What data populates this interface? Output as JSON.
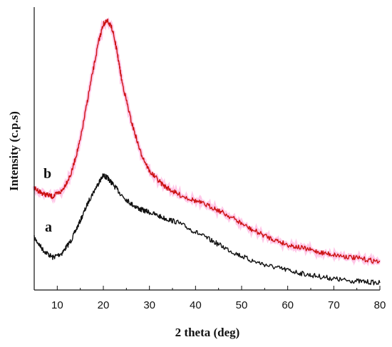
{
  "chart_data": {
    "type": "line",
    "xlabel": "2 theta (deg)",
    "ylabel": "Intensity (c.p.s)",
    "xlim": [
      5,
      80
    ],
    "ylim": [
      0,
      1
    ],
    "x_ticks": [
      10,
      20,
      30,
      40,
      50,
      60,
      70,
      80
    ],
    "y_tick_labels": false,
    "grid": false,
    "legend": "none",
    "series": [
      {
        "name": "a",
        "color": "#111111",
        "x": [
          5,
          7,
          9,
          11,
          13,
          15,
          17,
          19,
          20,
          21,
          22,
          24,
          26,
          28,
          30,
          33,
          36,
          40,
          44,
          48,
          52,
          56,
          60,
          64,
          68,
          72,
          76,
          80
        ],
        "y": [
          0.185,
          0.14,
          0.115,
          0.13,
          0.175,
          0.245,
          0.32,
          0.38,
          0.405,
          0.395,
          0.375,
          0.335,
          0.305,
          0.285,
          0.275,
          0.255,
          0.24,
          0.205,
          0.17,
          0.135,
          0.105,
          0.085,
          0.07,
          0.055,
          0.045,
          0.035,
          0.03,
          0.025
        ]
      },
      {
        "name": "b",
        "color": "#cc1111",
        "x": [
          5,
          7,
          9,
          11,
          13,
          15,
          17,
          19,
          20,
          21,
          22,
          23,
          24,
          26,
          28,
          30,
          33,
          36,
          40,
          44,
          48,
          52,
          56,
          60,
          64,
          68,
          72,
          76,
          80
        ],
        "y": [
          0.36,
          0.34,
          0.33,
          0.35,
          0.41,
          0.53,
          0.71,
          0.88,
          0.94,
          0.95,
          0.92,
          0.84,
          0.74,
          0.6,
          0.49,
          0.42,
          0.37,
          0.34,
          0.315,
          0.29,
          0.255,
          0.215,
          0.185,
          0.16,
          0.145,
          0.13,
          0.12,
          0.11,
          0.1
        ]
      }
    ]
  }
}
